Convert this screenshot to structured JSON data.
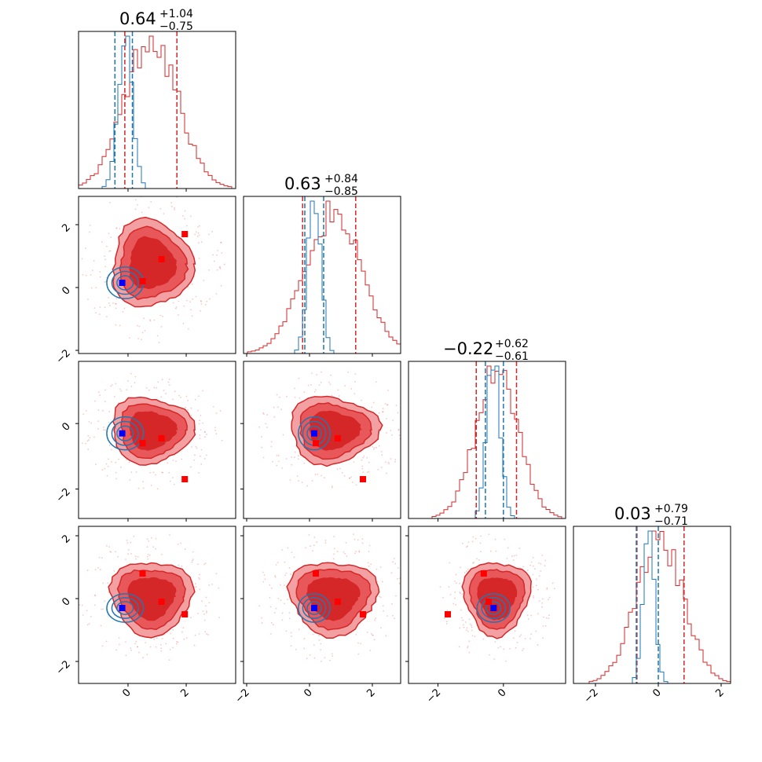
{
  "chart_data": {
    "type": "corner",
    "n_params": 4,
    "colors": {
      "posterior_a": "#d62728",
      "posterior_b": "#1f77b4",
      "truth_marker": "#ff0000",
      "point_marker": "#0000ff",
      "fill_dark": "#d62728",
      "fill_mid": "#e8575a",
      "fill_light": "#f2a0a2"
    },
    "ranges": [
      [
        -1.7,
        3.7
      ],
      [
        -2.1,
        2.9
      ],
      [
        -2.9,
        1.9
      ],
      [
        -2.7,
        2.3
      ]
    ],
    "ticks": [
      {
        "values": [
          0,
          2
        ],
        "labels": [
          "0",
          "2"
        ]
      },
      {
        "values": [
          -2,
          0,
          2
        ],
        "labels": [
          "−2",
          "0",
          "2"
        ]
      },
      {
        "values": [
          -2,
          0
        ],
        "labels": [
          "−2",
          "0"
        ]
      },
      {
        "values": [
          -2,
          0,
          2
        ],
        "labels": [
          "−2",
          "0",
          "2"
        ]
      }
    ],
    "titles": [
      {
        "median": "0.64",
        "plus": "+1.04",
        "minus": "−0.75"
      },
      {
        "median": "0.63",
        "plus": "+0.84",
        "minus": "−0.85"
      },
      {
        "median": "−0.22",
        "plus": "+0.62",
        "minus": "−0.61"
      },
      {
        "median": "0.03",
        "plus": "+0.79",
        "minus": "−0.71"
      }
    ],
    "series": [
      {
        "color": "#d62728",
        "means": [
          0.8,
          0.75,
          -0.2,
          0.05
        ],
        "sds": [
          0.9,
          0.9,
          0.65,
          0.75
        ],
        "quantiles": [
          [
            -0.11,
            1.68
          ],
          [
            -0.22,
            1.47
          ],
          [
            -0.83,
            0.4
          ],
          [
            -0.68,
            0.82
          ]
        ],
        "markers": [
          [
            0.5,
            0.2,
            -0.6,
            0.8
          ],
          [
            1.15,
            0.9,
            -0.45,
            -0.1
          ],
          [
            1.95,
            1.7,
            -1.7,
            -0.5
          ]
        ]
      },
      {
        "color": "#1f77b4",
        "means": [
          -0.1,
          0.15,
          -0.3,
          -0.3
        ],
        "sds": [
          0.25,
          0.2,
          0.2,
          0.18
        ],
        "quantiles": [
          [
            -0.45,
            0.15
          ],
          [
            -0.15,
            0.45
          ],
          [
            -0.55,
            0.0
          ],
          [
            -0.7,
            0.0
          ]
        ],
        "markers": [
          [
            -0.2,
            0.15,
            -0.3,
            -0.3
          ]
        ]
      }
    ]
  }
}
